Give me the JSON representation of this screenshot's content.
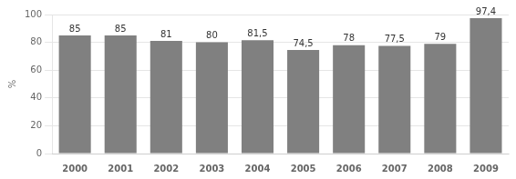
{
  "chart_data": {
    "type": "bar",
    "categories": [
      "2000",
      "2001",
      "2002",
      "2003",
      "2004",
      "2005",
      "2006",
      "2007",
      "2008",
      "2009"
    ],
    "values": [
      85,
      85,
      81,
      80,
      81.5,
      74.5,
      78,
      77.5,
      79,
      97.4
    ],
    "value_labels": [
      "85",
      "85",
      "81",
      "80",
      "81,5",
      "74,5",
      "78",
      "77,5",
      "79",
      "97,4"
    ],
    "data_labels": true,
    "color": "#808080",
    "y_label": "%",
    "ylim": [
      0,
      100
    ],
    "yticks": [
      0,
      20,
      40,
      60,
      80,
      100
    ],
    "grid": true
  }
}
